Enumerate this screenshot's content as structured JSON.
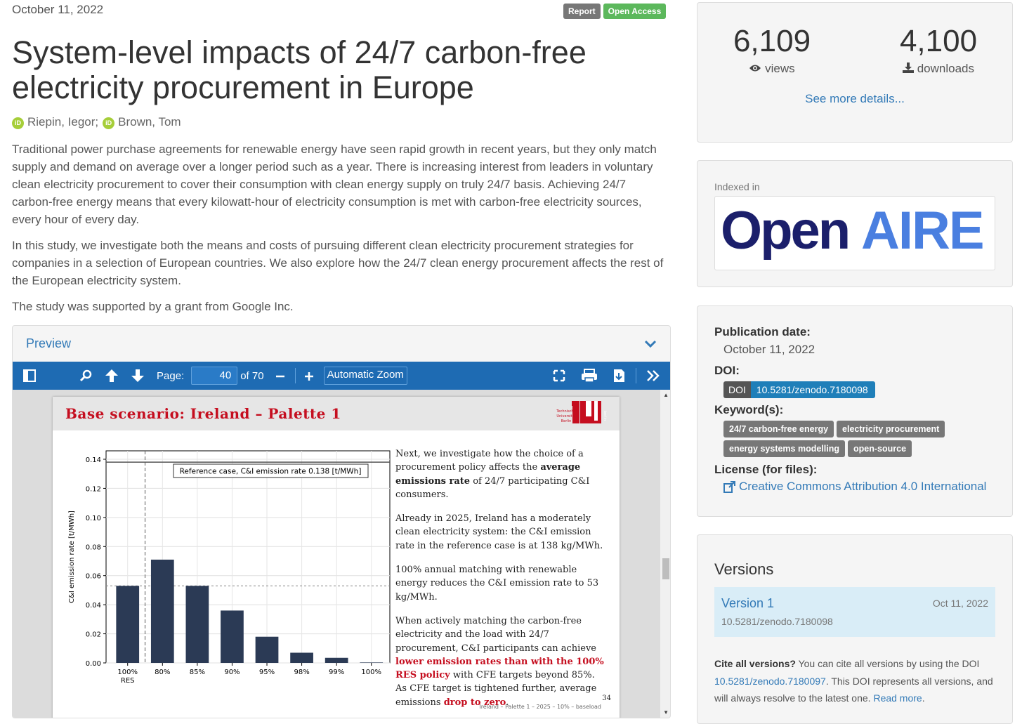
{
  "record": {
    "date": "October 11, 2022",
    "badges": [
      "Report",
      "Open Access"
    ],
    "title": "System-level impacts of 24/7 carbon-free electricity procurement in Europe",
    "authors": [
      "Riepin, Iegor",
      "Brown, Tom"
    ],
    "author_separator": ";",
    "orcid_icon_text": "iD",
    "abstract": [
      "Traditional power purchase agreements for renewable energy have seen rapid growth in recent years, but they only match supply and demand on average over a longer period such as a year. There is increasing interest from leaders in voluntary clean electricity procurement to cover their consumption with clean energy supply on truly 24/7 basis. Achieving 24/7 carbon-free energy means that every kilowatt-hour of electricity consumption is met with carbon-free electricity sources, every hour of every day.",
      "In this study, we investigate both the means and costs of pursuing different clean electricity procurement strategies for companies in a selection of European countries. We also explore how the 24/7 clean energy procurement affects the rest of the European electricity system.",
      "The study was supported by a grant from Google Inc."
    ]
  },
  "preview": {
    "title": "Preview",
    "toolbar": {
      "page_label": "Page:",
      "page_value": "40",
      "page_total": "of 70",
      "zoom": "Automatic Zoom"
    },
    "slide": {
      "title": "Base scenario:  Ireland – Palette 1",
      "logo_lines": [
        "Technische",
        "Universität",
        "Berlin"
      ],
      "logo_side_text": "berlin",
      "paragraphs": [
        [
          "Next, we investigate how the choice of a procurement policy affects the ",
          "average emissions rate",
          " of 24/7 participating C&I consumers."
        ],
        [
          "Already in 2025, Ireland has a moderately clean electricity system: the C&I emission rate in the reference case is at 138 kg/MWh."
        ],
        [
          "100% annual matching with renewable energy reduces the C&I emission rate to 53 kg/MWh."
        ],
        [
          "When actively matching the carbon-free electricity and the load with 24/7 procurement, C&I participants can achieve ",
          "lower emission rates than with the 100% RES policy",
          " with CFE targets beyond 85%.  As CFE target is tightened further, average emissions ",
          "drop to zero",
          "."
        ]
      ],
      "page_number": "34",
      "footer": "Ireland – Palette 1 – 2025 – 10% – baseload"
    }
  },
  "chart_data": {
    "type": "bar",
    "categories": [
      "100%\nRES",
      "80%",
      "85%",
      "90%",
      "95%",
      "98%",
      "99%",
      "100%"
    ],
    "values": [
      0.053,
      0.071,
      0.053,
      0.036,
      0.018,
      0.007,
      0.0035,
      0.0003
    ],
    "ylabel": "C&I emission rate [t/MWh]",
    "xlabel": "",
    "ylim": [
      0,
      0.14
    ],
    "yticks": [
      0.0,
      0.02,
      0.04,
      0.06,
      0.08,
      0.1,
      0.12,
      0.14
    ],
    "ytick_labels": [
      "0.00",
      "0.02",
      "0.04",
      "0.06",
      "0.08",
      "0.10",
      "0.12",
      "0.14"
    ],
    "reference_value": 0.138,
    "reference_label": "Reference case, C&I emission rate 0.138 [t/MWh]",
    "res_level": 0.053,
    "bar_color": "#2b3a55",
    "grid": true
  },
  "stats": {
    "views": "6,109",
    "views_label": "views",
    "downloads": "4,100",
    "downloads_label": "downloads",
    "more_link": "See more details..."
  },
  "indexed": {
    "label": "Indexed in",
    "logo_part1": "Open",
    "logo_part2": "AIRE"
  },
  "meta": {
    "pub_date_label": "Publication date:",
    "pub_date": "October 11, 2022",
    "doi_label": "DOI:",
    "doi_key": "DOI",
    "doi_value": "10.5281/zenodo.7180098",
    "keywords_label": "Keyword(s):",
    "keywords": [
      "24/7 carbon-free energy",
      "electricity procurement",
      "energy systems modelling",
      "open-source"
    ],
    "license_label": "License (for files):",
    "license": "Creative Commons Attribution 4.0 International"
  },
  "versions": {
    "title": "Versions",
    "items": [
      {
        "name": "Version 1",
        "date": "Oct 11, 2022",
        "doi": "10.5281/zenodo.7180098"
      }
    ],
    "cite_bold": "Cite all versions?",
    "cite_text1": " You can cite all versions by using the DOI ",
    "cite_doi": "10.5281/zenodo.7180097",
    "cite_text2": ". This DOI represents all versions, and will always resolve to the latest one. ",
    "read_more": "Read more",
    "cite_end": "."
  },
  "colors": {
    "link": "#337ab7",
    "toolbar": "#1e6bb3",
    "slide_red": "#c50e1f",
    "open_access": "#5cb85c",
    "orcid": "#a6ce39",
    "openaire_dark": "#1b1f6b",
    "openaire_blue": "#4a7fe0"
  }
}
